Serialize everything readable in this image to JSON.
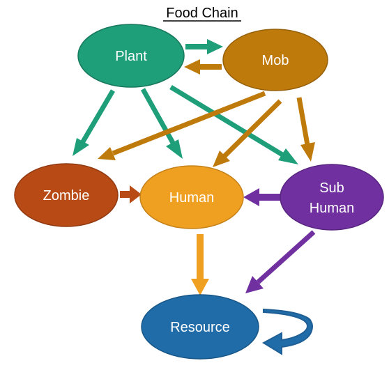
{
  "title": "Food Chain",
  "nodes": {
    "plant": {
      "lines": [
        "Plant"
      ],
      "color": "#1f9e7a"
    },
    "mob": {
      "lines": [
        "Mob"
      ],
      "color": "#bf7a0c"
    },
    "zombie": {
      "lines": [
        "Zombie"
      ],
      "color": "#b84a16"
    },
    "human": {
      "lines": [
        "Human"
      ],
      "color": "#f0a020"
    },
    "subhuman": {
      "lines": [
        "Sub",
        "Human"
      ],
      "color": "#7030a0"
    },
    "resource": {
      "lines": [
        "Resource"
      ],
      "color": "#1f6ca8"
    }
  },
  "edges": [
    {
      "from": "plant",
      "to": "mob"
    },
    {
      "from": "mob",
      "to": "plant"
    },
    {
      "from": "plant",
      "to": "zombie"
    },
    {
      "from": "plant",
      "to": "human"
    },
    {
      "from": "plant",
      "to": "subhuman"
    },
    {
      "from": "mob",
      "to": "zombie"
    },
    {
      "from": "mob",
      "to": "human"
    },
    {
      "from": "mob",
      "to": "subhuman"
    },
    {
      "from": "zombie",
      "to": "human"
    },
    {
      "from": "subhuman",
      "to": "human"
    },
    {
      "from": "human",
      "to": "resource"
    },
    {
      "from": "subhuman",
      "to": "resource"
    },
    {
      "from": "resource",
      "to": "resource"
    }
  ],
  "colors": {
    "plant_arrow": "#1f9e7a",
    "mob_arrow": "#bf7a0c",
    "zombie_arrow": "#b84a16",
    "human_arrow": "#f0a020",
    "subhuman_arrow": "#7030a0",
    "resource_arrow": "#1f5f95"
  }
}
